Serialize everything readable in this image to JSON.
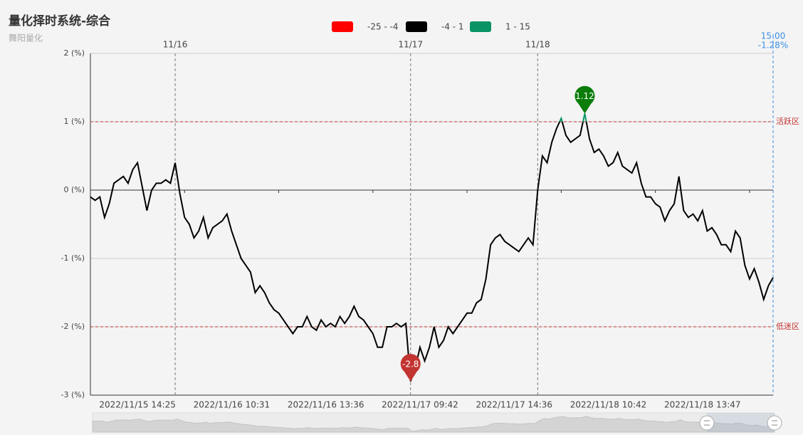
{
  "chart_data": {
    "type": "line",
    "title": "量化择时系统-综合",
    "subtitle": "舞阳量化",
    "pieces": [
      {
        "min": -25,
        "max": -4,
        "color": "#ff0000",
        "label": "-25 - -4"
      },
      {
        "min": -4,
        "max": 1,
        "color": "#000000",
        "label": "-4 - 1"
      },
      {
        "min": 1,
        "max": 15,
        "color": "#0a9466",
        "label": "1 - 15"
      }
    ],
    "categories": [
      null,
      null,
      null,
      null,
      null,
      null,
      null,
      null,
      null,
      null,
      "2022/11/15 14:25",
      null,
      null,
      null,
      null,
      null,
      null,
      null,
      null,
      null,
      null,
      null,
      null,
      null,
      null,
      null,
      null,
      null,
      null,
      null,
      "2022/11/16 10:31",
      null,
      null,
      null,
      null,
      null,
      null,
      null,
      null,
      null,
      null,
      null,
      null,
      null,
      null,
      null,
      null,
      null,
      null,
      null,
      "2022/11/16 13:36",
      null,
      null,
      null,
      null,
      null,
      null,
      null,
      null,
      null,
      null,
      null,
      null,
      null,
      null,
      null,
      null,
      null,
      null,
      null,
      "2022/11/17 09:42",
      null,
      null,
      null,
      null,
      null,
      null,
      null,
      null,
      null,
      null,
      null,
      null,
      null,
      null,
      null,
      null,
      null,
      null,
      null,
      "2022/11/17 14:36",
      null,
      null,
      null,
      null,
      null,
      null,
      null,
      null,
      null,
      null,
      null,
      null,
      null,
      null,
      null,
      null,
      null,
      null,
      null,
      "2022/11/18 10:42",
      null,
      null,
      null,
      null,
      null,
      null,
      null,
      null,
      null,
      null,
      null,
      null,
      null,
      null,
      null,
      null,
      null,
      null,
      null,
      "2022/11/18 13:47",
      null,
      null,
      null,
      null,
      null,
      null,
      null,
      null,
      null,
      null,
      null,
      null,
      null,
      null,
      null
    ],
    "series": [
      {
        "name": "综合",
        "values": [
          -0.1,
          -0.15,
          -0.1,
          -0.4,
          -0.2,
          0.1,
          0.15,
          0.2,
          0.1,
          0.3,
          0.4,
          0.05,
          -0.3,
          0.0,
          0.1,
          0.1,
          0.15,
          0.1,
          0.4,
          -0.05,
          -0.4,
          -0.5,
          -0.7,
          -0.6,
          -0.4,
          -0.7,
          -0.55,
          -0.5,
          -0.45,
          -0.35,
          -0.6,
          -0.8,
          -1.0,
          -1.1,
          -1.2,
          -1.5,
          -1.4,
          -1.5,
          -1.65,
          -1.75,
          -1.8,
          -1.9,
          -2.0,
          -2.1,
          -2.0,
          -2.0,
          -1.85,
          -2.0,
          -2.05,
          -1.9,
          -2.0,
          -1.95,
          -2.0,
          -1.85,
          -1.95,
          -1.85,
          -1.7,
          -1.85,
          -1.9,
          -2.0,
          -2.1,
          -2.3,
          -2.3,
          -2.0,
          -2.0,
          -1.95,
          -2.0,
          -1.95,
          -2.8,
          -2.6,
          -2.3,
          -2.5,
          -2.3,
          -2.0,
          -2.3,
          -2.2,
          -2.0,
          -2.1,
          -2.0,
          -1.9,
          -1.8,
          -1.8,
          -1.65,
          -1.6,
          -1.3,
          -0.8,
          -0.7,
          -0.65,
          -0.75,
          -0.8,
          -0.85,
          -0.9,
          -0.8,
          -0.7,
          -0.8,
          0.0,
          0.5,
          0.4,
          0.7,
          0.9,
          1.05,
          0.8,
          0.7,
          0.75,
          0.8,
          1.12,
          0.75,
          0.55,
          0.6,
          0.5,
          0.35,
          0.4,
          0.55,
          0.35,
          0.3,
          0.25,
          0.4,
          0.1,
          -0.1,
          -0.1,
          -0.2,
          -0.25,
          -0.45,
          -0.3,
          -0.2,
          0.2,
          -0.3,
          -0.4,
          -0.35,
          -0.45,
          -0.3,
          -0.6,
          -0.55,
          -0.65,
          -0.8,
          -0.8,
          -0.9,
          -0.6,
          -0.7,
          -1.1,
          -1.3,
          -1.15,
          -1.35,
          -1.6,
          -1.4,
          -1.28
        ]
      }
    ],
    "ylim": [
      -3,
      2
    ],
    "yticks": [
      {
        "value": -3,
        "label": "-3 (%)"
      },
      {
        "value": -2,
        "label": "-2 (%)"
      },
      {
        "value": -1,
        "label": "-1 (%)"
      },
      {
        "value": 0,
        "label": "0 (%)"
      },
      {
        "value": 1,
        "label": "1 (%)"
      },
      {
        "value": 2,
        "label": "2 (%)"
      }
    ],
    "grid": true,
    "day_marks": [
      {
        "index": 18,
        "label": "11/16"
      },
      {
        "index": 68,
        "label": "11/17"
      },
      {
        "index": 95,
        "label": "11/18"
      }
    ],
    "zones": [
      {
        "value": 1,
        "label": "活跃区"
      },
      {
        "value": -2,
        "label": "低迷区"
      }
    ],
    "mark_points": [
      {
        "index": 105,
        "value": 1.12,
        "color": "#0a7d0a"
      },
      {
        "index": 68,
        "value": -2.8,
        "color": "#c23531"
      }
    ],
    "end_marker": {
      "time": "15:00",
      "value": -1.28,
      "label": "-1.28%"
    }
  }
}
